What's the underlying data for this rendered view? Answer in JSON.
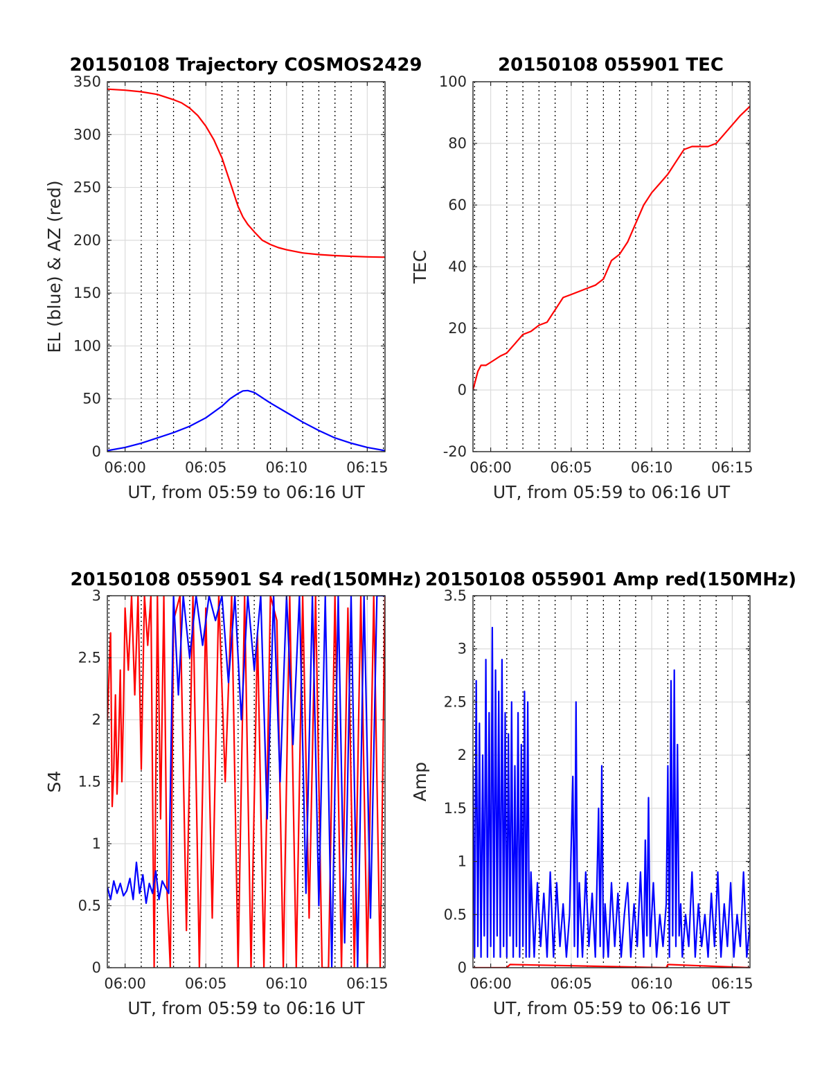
{
  "chart_data": [
    {
      "id": "trajectory",
      "type": "line",
      "title": "20150108 Trajectory COSMOS2429",
      "xlabel": "UT, from 05:59 to 06:16 UT",
      "ylabel": "EL (blue) & AZ (red)",
      "xlim": [
        -1.1,
        16.1
      ],
      "ylim": [
        0,
        350
      ],
      "xticks": [
        0,
        5,
        10,
        15
      ],
      "xticklabels": [
        "06:00",
        "06:05",
        "06:10",
        "06:15"
      ],
      "yticks": [
        0,
        50,
        100,
        150,
        200,
        250,
        300,
        350
      ],
      "yticklabels": [
        "0",
        "50",
        "100",
        "150",
        "200",
        "250",
        "300",
        "350"
      ],
      "grid": true,
      "minor_dotted_x": true,
      "series": [
        {
          "name": "AZ",
          "color": "#ff0000",
          "x": [
            -1.1,
            0,
            1,
            2,
            3,
            3.5,
            4,
            4.5,
            5,
            5.5,
            6,
            6.5,
            7,
            7.3,
            7.6,
            8,
            8.5,
            9,
            9.5,
            10,
            11,
            12,
            13,
            14,
            15,
            16.1
          ],
          "y": [
            343,
            342,
            340.5,
            338,
            333,
            330,
            325,
            318,
            308,
            295,
            278,
            255,
            232,
            222,
            215,
            208,
            200,
            196,
            193,
            191,
            188,
            186.5,
            185.5,
            184.8,
            184.3,
            184
          ]
        },
        {
          "name": "EL",
          "color": "#0000ff",
          "x": [
            -1.1,
            0,
            1,
            2,
            3,
            4,
            5,
            6,
            6.5,
            7,
            7.3,
            7.6,
            8,
            8.5,
            9,
            10,
            11,
            12,
            13,
            14,
            15,
            16.1
          ],
          "y": [
            1,
            4,
            8,
            13,
            18,
            24,
            32,
            43,
            50,
            55,
            57.5,
            57.8,
            56,
            51,
            46,
            37,
            28,
            20,
            13,
            8,
            4,
            1
          ]
        }
      ]
    },
    {
      "id": "tec",
      "type": "line",
      "title": "20150108 055901 TEC",
      "xlabel": "UT, from 05:59 to 06:16 UT",
      "ylabel": "TEC",
      "xlim": [
        -1.1,
        16.1
      ],
      "ylim": [
        -20,
        100
      ],
      "xticks": [
        0,
        5,
        10,
        15
      ],
      "xticklabels": [
        "06:00",
        "06:05",
        "06:10",
        "06:15"
      ],
      "yticks": [
        -20,
        0,
        20,
        40,
        60,
        80,
        100
      ],
      "yticklabels": [
        "-20",
        "0",
        "20",
        "40",
        "60",
        "80",
        "100"
      ],
      "grid": true,
      "minor_dotted_x": true,
      "series": [
        {
          "name": "TEC",
          "color": "#ff0000",
          "x": [
            -1.1,
            -0.8,
            -0.6,
            -0.3,
            0,
            0.3,
            0.6,
            1,
            1.5,
            2,
            2.5,
            3,
            3.5,
            4,
            4.5,
            5,
            5.5,
            6,
            6.5,
            7,
            7.5,
            8,
            8.5,
            9,
            9.5,
            10,
            10.5,
            11,
            11.5,
            12,
            12.5,
            13,
            13.5,
            14,
            14.5,
            15,
            15.5,
            16.1
          ],
          "y": [
            0,
            6,
            8,
            8,
            9,
            10,
            11,
            12,
            15,
            18,
            19,
            21,
            22,
            26,
            30,
            31,
            32,
            33,
            34,
            36,
            42,
            44,
            48,
            54,
            60,
            64,
            67,
            70,
            74,
            78,
            79,
            79,
            79,
            80,
            83,
            86,
            89,
            92
          ]
        }
      ]
    },
    {
      "id": "s4",
      "type": "line",
      "title": "20150108 055901 S4 red(150MHz)",
      "xlabel": "UT, from 05:59 to 06:16 UT",
      "ylabel": "S4",
      "xlim": [
        -1.1,
        16.1
      ],
      "ylim": [
        0,
        3
      ],
      "xticks": [
        0,
        5,
        10,
        15
      ],
      "xticklabels": [
        "06:00",
        "06:05",
        "06:10",
        "06:15"
      ],
      "yticks": [
        0,
        0.5,
        1,
        1.5,
        2,
        2.5,
        3
      ],
      "yticklabels": [
        "0",
        "0.5",
        "1",
        "1.5",
        "2",
        "2.5",
        "3"
      ],
      "grid": true,
      "minor_dotted_x": true,
      "series": [
        {
          "name": "S4 red",
          "color": "#ff0000",
          "x": [
            -1.1,
            -0.9,
            -0.8,
            -0.7,
            -0.6,
            -0.5,
            -0.4,
            -0.3,
            -0.2,
            -0.1,
            0,
            0.2,
            0.4,
            0.6,
            0.8,
            1,
            1.2,
            1.4,
            1.6,
            1.8,
            2,
            2.2,
            2.4,
            2.6,
            2.8,
            3,
            3.4,
            3.8,
            4.2,
            4.6,
            5,
            5.4,
            5.8,
            6.2,
            6.6,
            7,
            7.4,
            7.8,
            8.2,
            8.6,
            9,
            9.4,
            9.8,
            10.2,
            10.6,
            11,
            11.4,
            11.8,
            12.2,
            12.6,
            13,
            13.4,
            13.8,
            14.2,
            14.6,
            15,
            15.4,
            15.8,
            16.1
          ],
          "y": [
            2.0,
            2.7,
            1.3,
            1.6,
            2.2,
            1.4,
            1.8,
            2.4,
            1.5,
            2.1,
            2.9,
            2.4,
            3.0,
            2.2,
            3.0,
            1.6,
            3.0,
            2.6,
            3.0,
            0.0,
            3.0,
            1.2,
            3.0,
            0.6,
            0.0,
            2.8,
            3.0,
            0.3,
            3.0,
            0.0,
            2.9,
            0.4,
            3.0,
            1.5,
            3.0,
            0.0,
            3.0,
            0.0,
            2.7,
            0.0,
            3.0,
            2.8,
            0.0,
            3.0,
            0.0,
            3.0,
            0.4,
            3.0,
            0.0,
            0.0,
            3.0,
            0.0,
            2.9,
            0.0,
            3.0,
            0.0,
            3.0,
            0.0,
            3.0
          ]
        },
        {
          "name": "S4 blue",
          "color": "#0000ff",
          "x": [
            -1.1,
            -0.9,
            -0.7,
            -0.5,
            -0.3,
            -0.1,
            0.1,
            0.3,
            0.5,
            0.7,
            0.9,
            1.1,
            1.3,
            1.5,
            1.7,
            1.9,
            2.1,
            2.3,
            2.5,
            2.7,
            3,
            3.3,
            3.6,
            4,
            4.4,
            4.8,
            5.2,
            5.6,
            6,
            6.4,
            6.8,
            7.2,
            7.6,
            8,
            8.4,
            8.8,
            9.2,
            9.6,
            10,
            10.4,
            10.8,
            11.2,
            11.6,
            12,
            12.4,
            12.8,
            13.2,
            13.6,
            14,
            14.4,
            14.8,
            15.2,
            15.6,
            16.1
          ],
          "y": [
            0.65,
            0.55,
            0.7,
            0.6,
            0.68,
            0.58,
            0.62,
            0.72,
            0.55,
            0.85,
            0.6,
            0.75,
            0.52,
            0.68,
            0.6,
            0.78,
            0.55,
            0.7,
            0.65,
            0.6,
            3.0,
            2.2,
            3.0,
            2.5,
            3.0,
            2.6,
            3.0,
            2.8,
            3.0,
            2.3,
            3.0,
            2.0,
            3.0,
            2.4,
            3.0,
            1.2,
            3.0,
            1.5,
            3.0,
            1.8,
            3.0,
            0.6,
            3.0,
            0.5,
            3.0,
            0.0,
            3.0,
            0.2,
            3.0,
            0.0,
            3.0,
            0.4,
            3.0,
            3.0
          ]
        }
      ]
    },
    {
      "id": "amp",
      "type": "line",
      "title": "20150108 055901 Amp red(150MHz)",
      "xlabel": "UT, from 05:59 to 06:16 UT",
      "ylabel": "Amp",
      "xlim": [
        -1.1,
        16.1
      ],
      "ylim": [
        0,
        3.5
      ],
      "xticks": [
        0,
        5,
        10,
        15
      ],
      "xticklabels": [
        "06:00",
        "06:05",
        "06:10",
        "06:15"
      ],
      "yticks": [
        0,
        0.5,
        1,
        1.5,
        2,
        2.5,
        3,
        3.5
      ],
      "yticklabels": [
        "0",
        "0.5",
        "1",
        "1.5",
        "2",
        "2.5",
        "3",
        "3.5"
      ],
      "grid": true,
      "minor_dotted_x": true,
      "series": [
        {
          "name": "Amp",
          "color": "#0000ff",
          "x": [
            -1.1,
            -1.0,
            -0.9,
            -0.8,
            -0.7,
            -0.6,
            -0.5,
            -0.4,
            -0.3,
            -0.2,
            -0.1,
            0,
            0.1,
            0.2,
            0.3,
            0.4,
            0.5,
            0.6,
            0.7,
            0.8,
            0.9,
            1,
            1.1,
            1.2,
            1.3,
            1.4,
            1.5,
            1.6,
            1.7,
            1.8,
            1.9,
            2,
            2.1,
            2.2,
            2.3,
            2.4,
            2.5,
            2.7,
            2.9,
            3.1,
            3.3,
            3.5,
            3.7,
            3.9,
            4.1,
            4.3,
            4.5,
            4.7,
            4.9,
            5.1,
            5.2,
            5.3,
            5.4,
            5.5,
            5.7,
            5.9,
            6.1,
            6.3,
            6.5,
            6.7,
            6.8,
            6.9,
            7.0,
            7.1,
            7.3,
            7.5,
            7.7,
            7.9,
            8.1,
            8.3,
            8.5,
            8.7,
            8.9,
            9.1,
            9.3,
            9.5,
            9.6,
            9.7,
            9.8,
            9.9,
            10.1,
            10.3,
            10.5,
            10.7,
            10.9,
            11.0,
            11.1,
            11.2,
            11.3,
            11.4,
            11.5,
            11.6,
            11.7,
            11.8,
            11.9,
            12.1,
            12.3,
            12.5,
            12.7,
            12.9,
            13.1,
            13.3,
            13.5,
            13.7,
            13.9,
            14.1,
            14.3,
            14.5,
            14.7,
            14.9,
            15.1,
            15.3,
            15.5,
            15.7,
            15.9,
            16.1
          ],
          "y": [
            1.9,
            0.1,
            2.7,
            0.2,
            2.3,
            0.1,
            2.0,
            0.3,
            2.9,
            0.1,
            2.4,
            0.2,
            3.2,
            0.1,
            2.8,
            0.3,
            2.6,
            0.1,
            2.9,
            0.2,
            2.4,
            0.1,
            2.2,
            0.3,
            2.5,
            0.1,
            1.9,
            0.2,
            2.4,
            0.1,
            2.1,
            0.2,
            2.6,
            0.1,
            2.5,
            0.1,
            0.9,
            0.1,
            0.8,
            0.2,
            0.7,
            0.1,
            0.9,
            0.1,
            0.8,
            0.2,
            0.6,
            0.1,
            0.5,
            1.8,
            0.2,
            2.5,
            0.1,
            0.8,
            0.1,
            0.9,
            0.2,
            0.7,
            0.1,
            1.5,
            0.2,
            1.9,
            0.1,
            0.6,
            0.1,
            0.8,
            0.2,
            0.7,
            0.1,
            0.5,
            0.8,
            0.1,
            0.6,
            0.2,
            0.9,
            0.1,
            1.2,
            0.3,
            1.6,
            0.2,
            0.8,
            0.1,
            0.5,
            0.2,
            0.6,
            1.9,
            0.1,
            2.7,
            0.3,
            2.8,
            0.2,
            2.1,
            0.3,
            0.6,
            0.1,
            0.5,
            0.2,
            0.9,
            0.1,
            0.6,
            0.2,
            0.5,
            0.1,
            0.7,
            0.2,
            0.9,
            0.1,
            0.6,
            0.2,
            0.8,
            0.1,
            0.5,
            0.2,
            0.9,
            0.1,
            0.4
          ]
        },
        {
          "name": "Amp red",
          "color": "#ff0000",
          "x": [
            -1.1,
            1.0,
            1.2,
            10.9,
            11.0,
            16.1
          ],
          "y": [
            0,
            0,
            0.03,
            0,
            0.03,
            0
          ]
        }
      ]
    }
  ]
}
